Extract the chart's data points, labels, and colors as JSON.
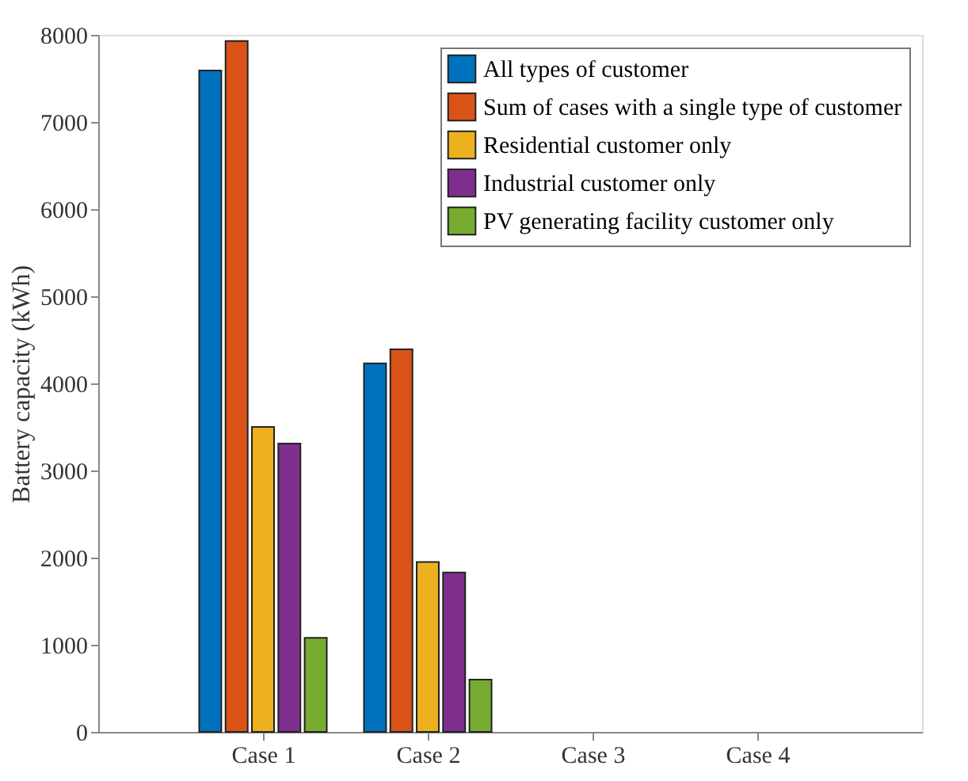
{
  "chart_data": {
    "type": "bar",
    "ylabel": "Battery capacity (kWh)",
    "categories": [
      "Case 1",
      "Case 2",
      "Case 3",
      "Case 4"
    ],
    "series": [
      {
        "name": "All types of customer",
        "color": "#0072bd",
        "values": [
          7590,
          4230,
          0,
          0
        ]
      },
      {
        "name": "Sum of cases with a single type of customer",
        "color": "#d95319",
        "values": [
          7930,
          4390,
          0,
          0
        ]
      },
      {
        "name": "Residential customer only",
        "color": "#edb120",
        "values": [
          3500,
          1950,
          0,
          0
        ]
      },
      {
        "name": "Industrial customer only",
        "color": "#7e2f8e",
        "values": [
          3310,
          1830,
          0,
          0
        ]
      },
      {
        "name": "PV generating facility customer only",
        "color": "#77ac30",
        "values": [
          1080,
          600,
          0,
          0
        ]
      }
    ],
    "ylim": [
      0,
      8000
    ],
    "yticks": [
      0,
      1000,
      2000,
      3000,
      4000,
      5000,
      6000,
      7000,
      8000
    ],
    "grid": false,
    "legend": "top right"
  }
}
